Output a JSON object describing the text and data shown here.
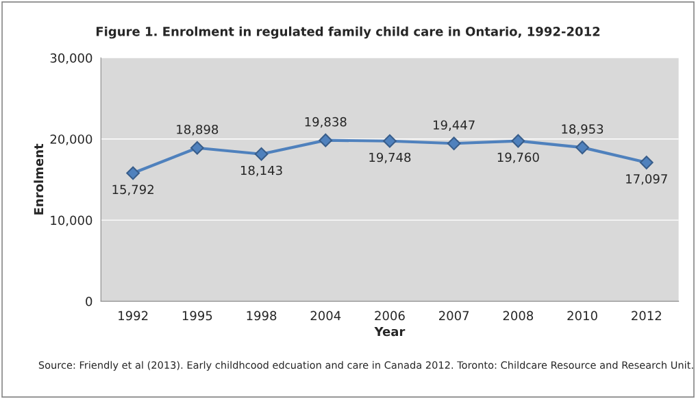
{
  "chart_data": {
    "type": "line",
    "title": "Figure 1. Enrolment in regulated family child care in Ontario, 1992-2012",
    "xlabel": "Year",
    "ylabel": "Enrolment",
    "categories": [
      "1992",
      "1995",
      "1998",
      "2004",
      "2006",
      "2007",
      "2008",
      "2010",
      "2012"
    ],
    "series": [
      {
        "color": "#4f81bd",
        "values": [
          15792,
          18898,
          18143,
          19838,
          19748,
          19447,
          19760,
          18953,
          17097
        ]
      }
    ],
    "value_labels": [
      "15,792",
      "18,898",
      "18,143",
      "19,838",
      "19,748",
      "19,447",
      "19,760",
      "18,953",
      "17,097"
    ],
    "ylim": [
      0,
      30000
    ],
    "yticks": [
      0,
      {
        "value": 10000,
        "label": "10,000"
      },
      {
        "value": 20000,
        "label": "20,000"
      },
      {
        "value": 30000,
        "label": "30,000"
      }
    ],
    "grid": "y",
    "marker": "diamond",
    "line_style": "solid",
    "legend": false,
    "annotations": [
      "Source: Friendly et al (2013). Early childhcood edcuation and care in Canada 2012. Toronto: Childcare Resource and Research Unit."
    ]
  }
}
